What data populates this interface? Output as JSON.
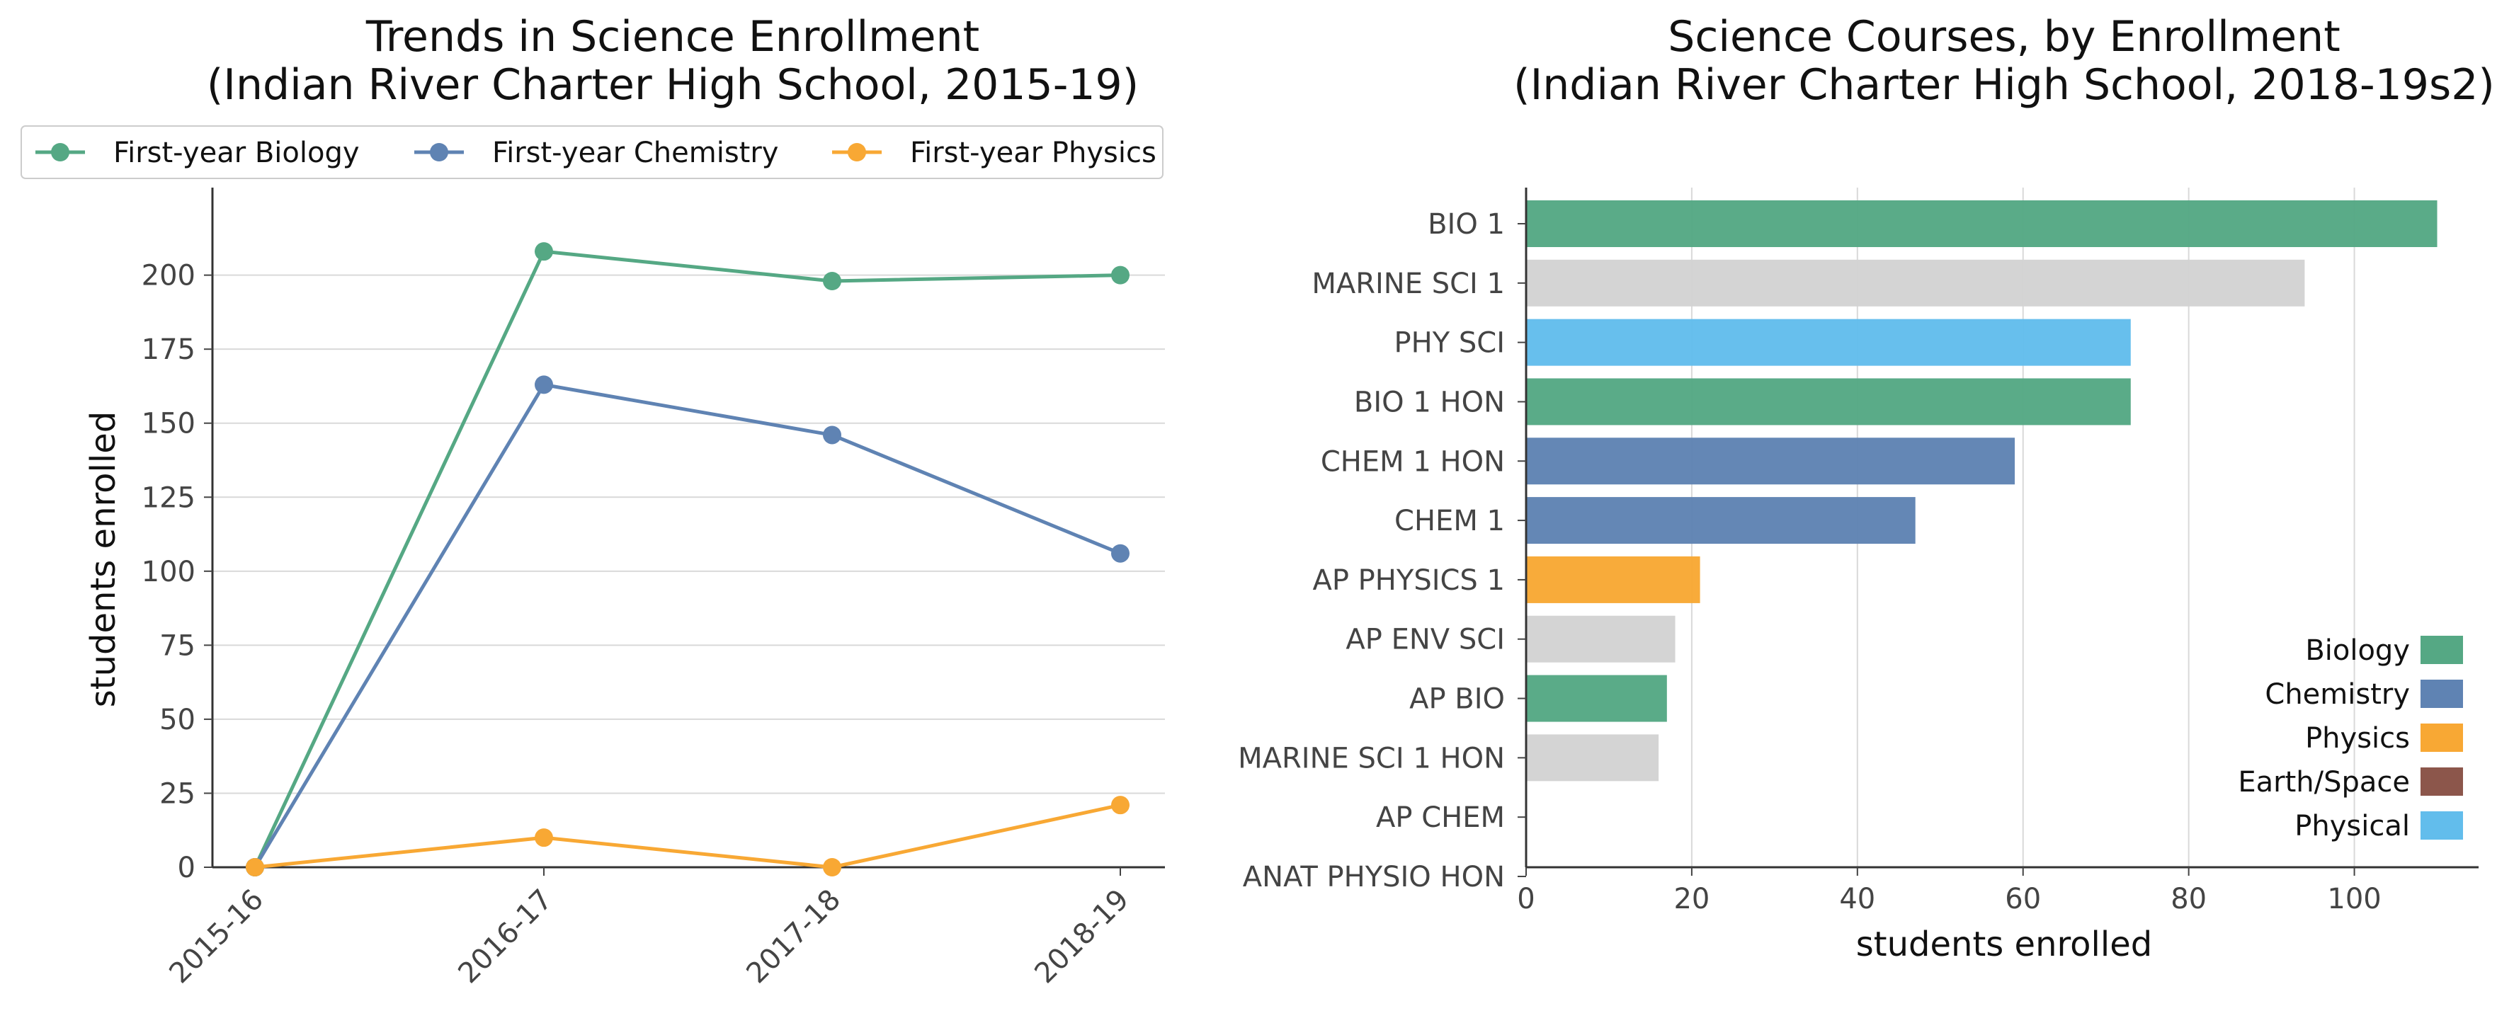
{
  "chart_data": [
    {
      "type": "line",
      "title": "Trends in Science Enrollment",
      "subtitle": "(Indian River Charter High School, 2015-19)",
      "xlabel": "",
      "ylabel": "students enrolled",
      "categories": [
        "2015-16",
        "2016-17",
        "2017-18",
        "2018-19"
      ],
      "ylim": [
        0,
        220
      ],
      "yticks": [
        0,
        25,
        50,
        75,
        100,
        125,
        150,
        175,
        200
      ],
      "grid": "horizontal",
      "legend_position": "top",
      "series": [
        {
          "name": "First-year Biology",
          "color": "#55a884",
          "values": [
            0,
            208,
            198,
            200
          ]
        },
        {
          "name": "First-year Chemistry",
          "color": "#5f83b3",
          "values": [
            0,
            163,
            146,
            106
          ]
        },
        {
          "name": "First-year Physics",
          "color": "#f8a834",
          "values": [
            0,
            10,
            0,
            21
          ]
        }
      ]
    },
    {
      "type": "bar",
      "orientation": "horizontal",
      "title": "Science Courses, by Enrollment",
      "subtitle": "(Indian River Charter High School, 2018-19s2)",
      "xlabel": "students enrolled",
      "ylabel": "",
      "xlim": [
        0,
        115
      ],
      "xticks": [
        0,
        20,
        40,
        60,
        80,
        100
      ],
      "grid": "vertical",
      "legend_position": "lower-right",
      "categories": [
        "BIO 1",
        "MARINE SCI 1",
        "PHY SCI",
        "BIO 1 HON",
        "CHEM 1 HON",
        "CHEM 1",
        "AP PHYSICS 1",
        "AP ENV SCI",
        "AP BIO",
        "MARINE SCI 1 HON",
        "AP CHEM",
        "ANAT PHYSIO HON"
      ],
      "values": [
        110,
        94,
        73,
        73,
        59,
        47,
        21,
        18,
        17,
        16,
        0,
        0
      ],
      "bar_colors": [
        "#55a884",
        "#d3d3d3",
        "#62bdec",
        "#55a884",
        "#5f83b3",
        "#5f83b3",
        "#f8a834",
        "#d3d3d3",
        "#55a884",
        "#d3d3d3",
        "#d3d3d3",
        "#d3d3d3"
      ],
      "legend": [
        {
          "name": "Biology",
          "color": "#55a884"
        },
        {
          "name": "Chemistry",
          "color": "#5f83b3"
        },
        {
          "name": "Physics",
          "color": "#f8a834"
        },
        {
          "name": "Earth/Space",
          "color": "#8c564b"
        },
        {
          "name": "Physical",
          "color": "#62bdec"
        }
      ]
    }
  ]
}
